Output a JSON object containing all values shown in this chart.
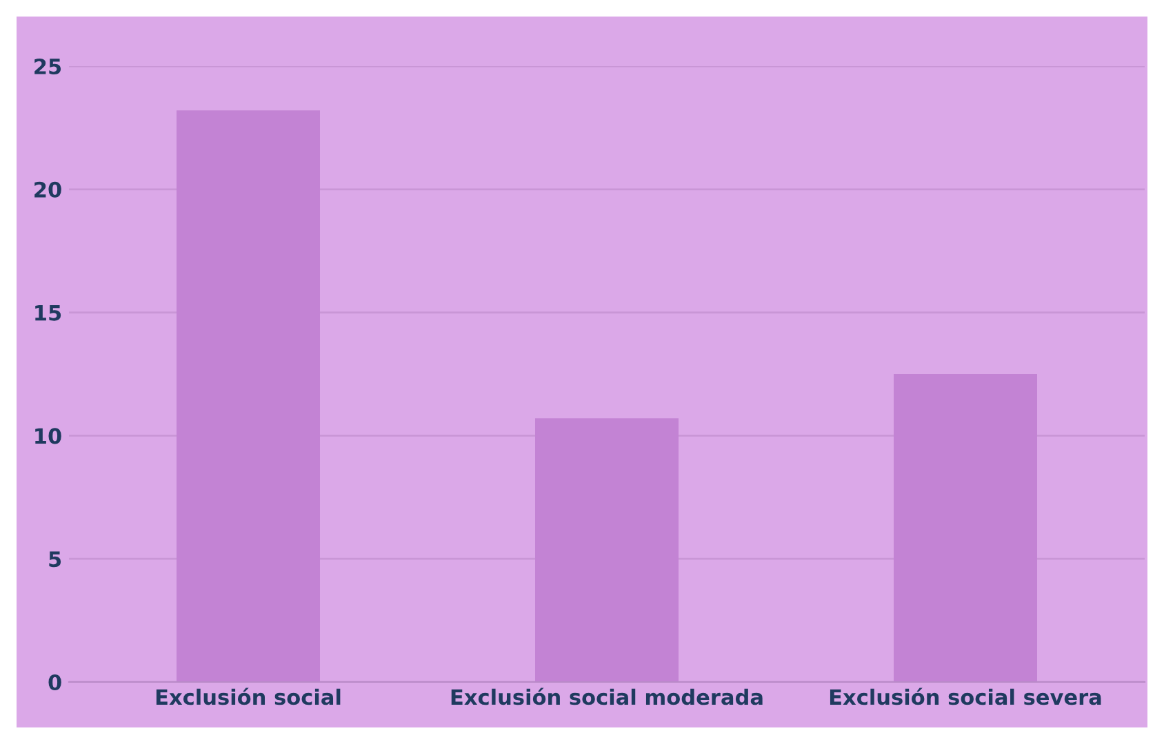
{
  "chart_data": {
    "type": "bar",
    "categories": [
      "Exclusión social",
      "Exclusión social moderada",
      "Exclusión social severa"
    ],
    "values": [
      23.2,
      10.7,
      12.5
    ],
    "color": "#c383d4",
    "ylim": [
      0,
      25
    ],
    "yticks": [
      0,
      5,
      10,
      15,
      20,
      25
    ],
    "grid": "y"
  }
}
